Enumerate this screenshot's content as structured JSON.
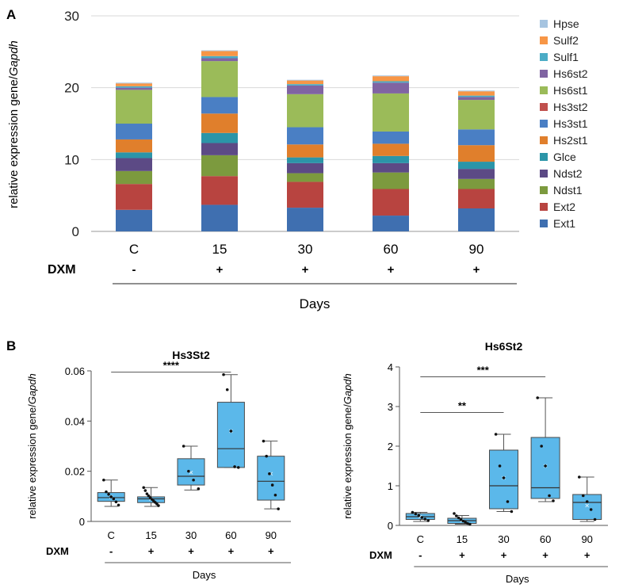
{
  "panel_a": {
    "label": "A",
    "chart_type": "stacked bar",
    "ylabel_prefix": "relative expression gene/",
    "ylabel_italic": "Gapdh",
    "ylim": [
      0,
      30
    ],
    "yticks": [
      "0",
      "10",
      "20",
      "30"
    ],
    "categories": [
      "C",
      "15",
      "30",
      "60",
      "90"
    ],
    "dxm_label": "DXM",
    "dxm_signs": [
      "-",
      "+",
      "+",
      "+",
      "+"
    ],
    "days_label": "Days",
    "legend_position": "right",
    "series": [
      {
        "name": "Ext1",
        "color": "#3f6fb0",
        "values": [
          3.0,
          3.7,
          3.3,
          2.2,
          3.2
        ]
      },
      {
        "name": "Ext2",
        "color": "#b84440",
        "values": [
          3.6,
          4.0,
          3.6,
          3.7,
          2.7
        ]
      },
      {
        "name": "Ndst1",
        "color": "#7c9a3e",
        "values": [
          1.8,
          2.9,
          1.2,
          2.3,
          1.4
        ]
      },
      {
        "name": "Ndst2",
        "color": "#5c4a85",
        "values": [
          1.8,
          1.7,
          1.4,
          1.3,
          1.4
        ]
      },
      {
        "name": "Glce",
        "color": "#2b95a8",
        "values": [
          0.8,
          1.4,
          0.8,
          1.0,
          1.0
        ]
      },
      {
        "name": "Hs2st1",
        "color": "#e07f2c",
        "values": [
          1.8,
          2.7,
          1.8,
          1.7,
          2.3
        ]
      },
      {
        "name": "Hs3st1",
        "color": "#4a7fc4",
        "values": [
          2.2,
          2.3,
          2.4,
          1.7,
          2.2
        ]
      },
      {
        "name": "Hs3st2",
        "color": "#c0504d",
        "values": [
          0.0,
          0.0,
          0.0,
          0.0,
          0.0
        ]
      },
      {
        "name": "Hs6st1",
        "color": "#9bbb59",
        "values": [
          4.7,
          5.0,
          4.6,
          5.3,
          4.1
        ]
      },
      {
        "name": "Hs6st2",
        "color": "#8064a2",
        "values": [
          0.3,
          0.4,
          1.2,
          1.5,
          0.4
        ]
      },
      {
        "name": "Sulf1",
        "color": "#4bacc6",
        "values": [
          0.2,
          0.3,
          0.2,
          0.2,
          0.2
        ]
      },
      {
        "name": "Sulf2",
        "color": "#f79646",
        "values": [
          0.4,
          0.7,
          0.5,
          0.7,
          0.6
        ]
      },
      {
        "name": "Hpse",
        "color": "#a6c4e0",
        "values": [
          0.1,
          0.1,
          0.1,
          0.1,
          0.1
        ]
      }
    ]
  },
  "panel_b_label": "B",
  "chart_data": [
    {
      "type": "box",
      "title": "Hs3St2",
      "ylabel_prefix": "relative expression gene/",
      "ylabel_italic": "Gapdh",
      "ylim": [
        0,
        0.06
      ],
      "yticks": [
        "0",
        "0.02",
        "0.04",
        "0.06"
      ],
      "categories": [
        "C",
        "15",
        "30",
        "60",
        "90"
      ],
      "dxm_label": "DXM",
      "dxm_signs": [
        "-",
        "+",
        "+",
        "+",
        "+"
      ],
      "xlabel": "Days",
      "fill_color": "#5bb8ea",
      "boxes": [
        {
          "whisker_low": 0.006,
          "q1": 0.008,
          "median": 0.0095,
          "q3": 0.0115,
          "whisker_high": 0.0165,
          "mean": 0.0098,
          "points": [
            0.0165,
            0.0118,
            0.0108,
            0.0098,
            0.009,
            0.0078,
            0.0065
          ]
        },
        {
          "whisker_low": 0.006,
          "q1": 0.0075,
          "median": 0.009,
          "q3": 0.0098,
          "whisker_high": 0.0135,
          "mean": 0.0089,
          "points": [
            0.0135,
            0.0123,
            0.011,
            0.0102,
            0.0095,
            0.0088,
            0.0082,
            0.0076,
            0.007,
            0.0063
          ]
        },
        {
          "whisker_low": 0.0125,
          "q1": 0.0145,
          "median": 0.018,
          "q3": 0.025,
          "whisker_high": 0.03,
          "mean": 0.0195,
          "points": [
            0.03,
            0.02,
            0.0165,
            0.013
          ]
        },
        {
          "whisker_low": 0.0215,
          "q1": 0.0215,
          "median": 0.029,
          "q3": 0.0475,
          "whisker_high": 0.0585,
          "mean": 0.036,
          "points": [
            0.0585,
            0.0525,
            0.036,
            0.0218,
            0.0215
          ]
        },
        {
          "whisker_low": 0.005,
          "q1": 0.0085,
          "median": 0.016,
          "q3": 0.026,
          "whisker_high": 0.032,
          "mean": 0.019,
          "points": [
            0.032,
            0.026,
            0.019,
            0.0145,
            0.0105,
            0.005
          ]
        }
      ],
      "significance": [
        {
          "from": "C",
          "to": "60",
          "label": "****",
          "y": 0.0595
        }
      ]
    },
    {
      "type": "box",
      "title": "Hs6St2",
      "ylabel_prefix": "relative expression gene/",
      "ylabel_italic": "Gapdh",
      "ylim": [
        0,
        4
      ],
      "yticks": [
        "0",
        "1",
        "2",
        "3",
        "4"
      ],
      "categories": [
        "C",
        "15",
        "30",
        "60",
        "90"
      ],
      "dxm_label": "DXM",
      "dxm_signs": [
        "-",
        "+",
        "+",
        "+",
        "+"
      ],
      "xlabel": "Days",
      "fill_color": "#5bb8ea",
      "boxes": [
        {
          "whisker_low": 0.1,
          "q1": 0.15,
          "median": 0.22,
          "q3": 0.3,
          "whisker_high": 0.33,
          "mean": 0.22,
          "points": [
            0.33,
            0.29,
            0.25,
            0.2,
            0.16,
            0.12
          ]
        },
        {
          "whisker_low": 0.03,
          "q1": 0.05,
          "median": 0.12,
          "q3": 0.18,
          "whisker_high": 0.25,
          "mean": 0.12,
          "points": [
            0.3,
            0.24,
            0.19,
            0.15,
            0.11,
            0.08,
            0.05,
            0.03
          ]
        },
        {
          "whisker_low": 0.35,
          "q1": 0.42,
          "median": 1.0,
          "q3": 1.9,
          "whisker_high": 2.3,
          "mean": 1.2,
          "points": [
            2.3,
            1.5,
            1.2,
            0.6,
            0.35
          ]
        },
        {
          "whisker_low": 0.6,
          "q1": 0.68,
          "median": 0.95,
          "q3": 2.22,
          "whisker_high": 3.22,
          "mean": 1.5,
          "points": [
            3.22,
            2.0,
            1.5,
            0.75,
            0.62
          ]
        },
        {
          "whisker_low": 0.1,
          "q1": 0.15,
          "median": 0.58,
          "q3": 0.78,
          "whisker_high": 1.22,
          "mean": 0.5,
          "points": [
            1.22,
            0.75,
            0.6,
            0.4,
            0.15
          ]
        }
      ],
      "significance": [
        {
          "from": "C",
          "to": "60",
          "label": "***",
          "y": 3.75
        },
        {
          "from": "C",
          "to": "30",
          "label": "**",
          "y": 2.85
        }
      ]
    }
  ]
}
